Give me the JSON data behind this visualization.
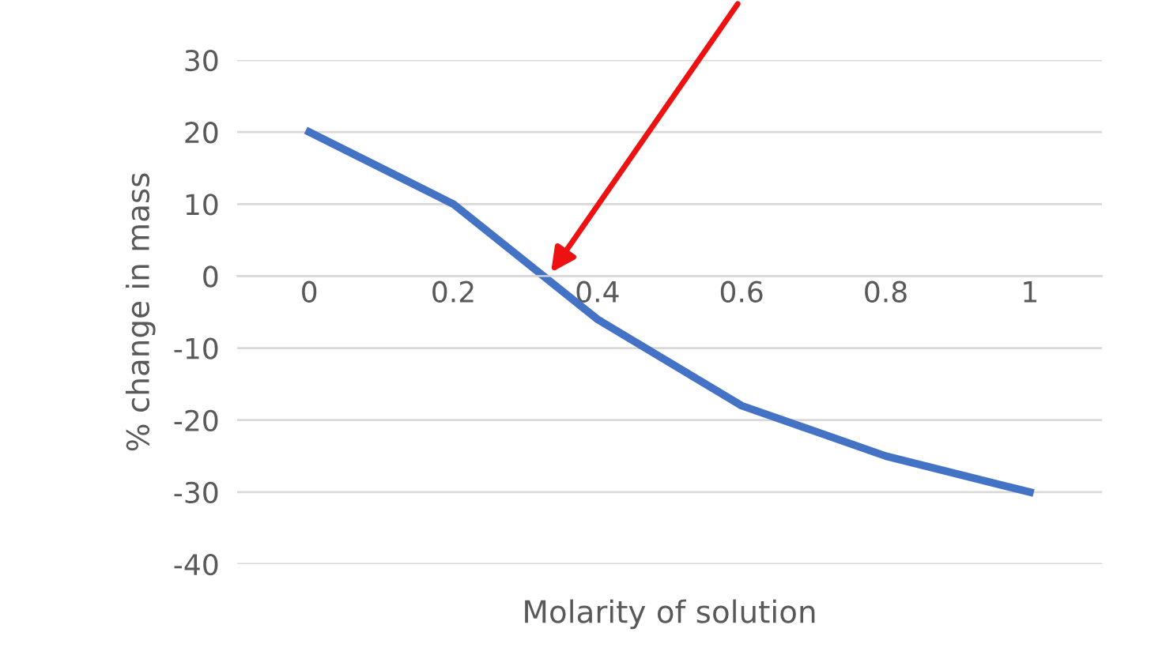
{
  "chart_data": {
    "type": "line",
    "xlabel": "Molarity of solution",
    "ylabel": "% change in mass",
    "categories": [
      "0",
      "0.2",
      "0.4",
      "0.6",
      "0.8",
      "1"
    ],
    "series": [
      {
        "color": "#4472c4",
        "values": [
          20,
          10,
          -6,
          -18,
          -25,
          -30
        ]
      }
    ],
    "ylim": [
      -40,
      30
    ],
    "yticks": [
      -40,
      -30,
      -20,
      -10,
      0,
      10,
      20,
      30
    ],
    "grid": "y",
    "legend": false,
    "marker": "none",
    "line_style": "solid"
  }
}
